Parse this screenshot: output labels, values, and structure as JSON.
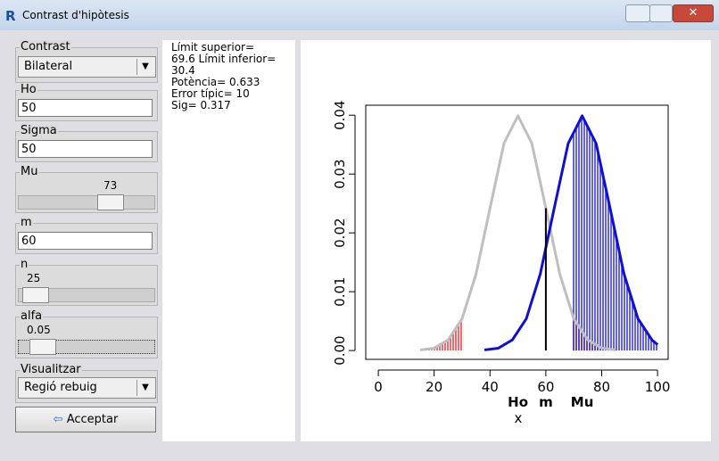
{
  "window": {
    "title": "Contrast d'hipòtesis"
  },
  "controls": {
    "contrast": {
      "label": "Contrast",
      "value": "Bilateral"
    },
    "ho": {
      "label": "Ho",
      "value": "50"
    },
    "sigma": {
      "label": "Sigma",
      "value": "50"
    },
    "mu": {
      "label": "Mu",
      "value": 73
    },
    "m": {
      "label": "m",
      "value": "60"
    },
    "n": {
      "label": "n",
      "value": 25
    },
    "alfa": {
      "label": "alfa",
      "value": 0.05
    },
    "visualitzar": {
      "label": "Visualitzar",
      "value": "Regió rebuig"
    },
    "button": "Acceptar"
  },
  "info": {
    "lines": [
      "Límit superior=",
      "69.6 Límit inferior=",
      "30.4",
      "Potència= 0.633",
      "Error típic= 10",
      "Sig= 0.317"
    ]
  },
  "plot": {
    "type": "line",
    "xlabel": "x",
    "xlim": [
      -4.5,
      103.8
    ],
    "ylim": [
      -0.0015,
      0.0417
    ],
    "xticks": [
      0,
      20,
      40,
      60,
      80,
      100
    ],
    "yticks": [
      {
        "value": 0,
        "label": "0.00"
      },
      {
        "value": 0.01,
        "label": "0.01"
      },
      {
        "value": 0.02,
        "label": "0.02"
      },
      {
        "value": 0.03,
        "label": "0.03"
      },
      {
        "value": 0.04,
        "label": "0.04"
      }
    ],
    "series": [
      {
        "color": "#bfbfbf",
        "x": [
          15,
          20,
          25,
          30,
          35,
          40,
          45,
          50,
          55,
          60,
          65,
          70,
          75,
          80,
          85
        ],
        "values": [
          0.0001,
          0.0004,
          0.0018,
          0.0054,
          0.013,
          0.0242,
          0.0352,
          0.0399,
          0.0352,
          0.0242,
          0.013,
          0.0054,
          0.0018,
          0.0004,
          0.0001
        ]
      },
      {
        "color": "#1010d0",
        "x": [
          38,
          43,
          48,
          53,
          58,
          63,
          68,
          73,
          78,
          83,
          88,
          93,
          98,
          100
        ],
        "values": [
          0.0001,
          0.0004,
          0.0018,
          0.0054,
          0.013,
          0.0242,
          0.0352,
          0.0399,
          0.0352,
          0.0242,
          0.013,
          0.0054,
          0.0018,
          0.001
        ]
      }
    ],
    "regions": [
      {
        "series": 0,
        "color": "#e8262a",
        "lower": 30.4,
        "upper": 69.6
      },
      {
        "series": 1,
        "color": "#1a1ad6",
        "lower": 30.4,
        "upper": 69.6
      }
    ],
    "markers": [
      {
        "label": "Ho",
        "x": 50
      },
      {
        "label": "m",
        "x": 60
      },
      {
        "label": "Mu",
        "x": 73
      }
    ]
  }
}
